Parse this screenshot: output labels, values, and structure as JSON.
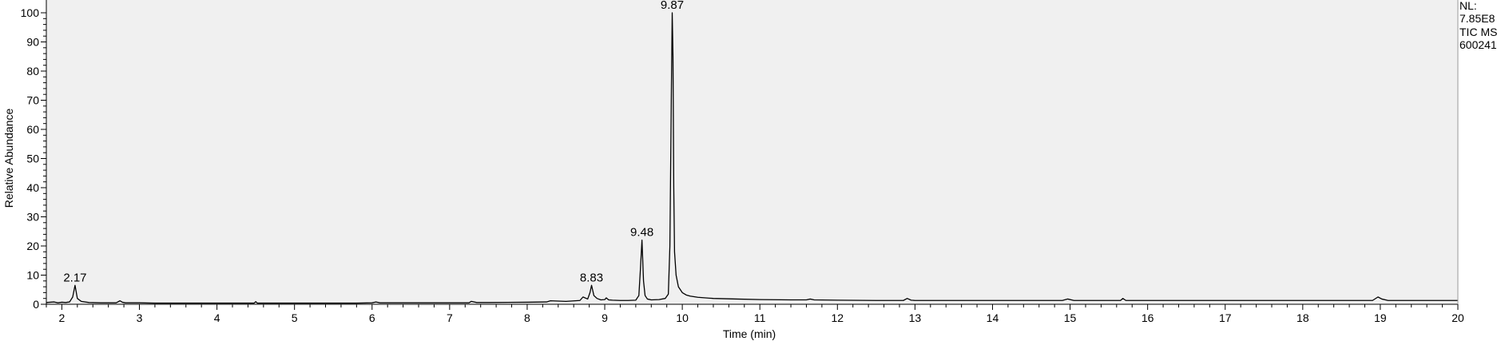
{
  "chart_data": {
    "type": "line",
    "title": "",
    "xlabel": "Time (min)",
    "ylabel": "Relative Abundance",
    "xlim": [
      1.8,
      20
    ],
    "ylim": [
      0,
      100
    ],
    "x_ticks": [
      2,
      3,
      4,
      5,
      6,
      7,
      8,
      9,
      10,
      11,
      12,
      13,
      14,
      15,
      16,
      17,
      18,
      19,
      20
    ],
    "y_ticks": [
      0,
      10,
      20,
      30,
      40,
      50,
      60,
      70,
      80,
      90,
      100
    ],
    "info": [
      "NL:",
      "7.85E8",
      "TIC  MS",
      "600241"
    ],
    "annotations": [
      {
        "x": 2.17,
        "y": 6.5,
        "label": "2.17"
      },
      {
        "x": 8.83,
        "y": 6.5,
        "label": "8.83"
      },
      {
        "x": 9.48,
        "y": 22,
        "label": "9.48"
      },
      {
        "x": 9.87,
        "y": 100,
        "label": "9.87"
      }
    ],
    "series": [
      {
        "name": "TIC MS",
        "x": [
          1.8,
          1.9,
          1.95,
          2.0,
          2.05,
          2.1,
          2.14,
          2.17,
          2.2,
          2.25,
          2.35,
          2.5,
          2.7,
          2.75,
          2.78,
          2.82,
          3.0,
          3.2,
          3.5,
          3.8,
          4.0,
          4.3,
          4.48,
          4.5,
          4.52,
          4.8,
          5.0,
          5.3,
          5.6,
          5.8,
          6.0,
          6.05,
          6.1,
          6.5,
          7.0,
          7.25,
          7.28,
          7.35,
          7.5,
          8.0,
          8.25,
          8.3,
          8.5,
          8.68,
          8.72,
          8.78,
          8.81,
          8.83,
          8.86,
          8.9,
          8.95,
          9.0,
          9.02,
          9.05,
          9.1,
          9.2,
          9.3,
          9.4,
          9.44,
          9.46,
          9.48,
          9.5,
          9.52,
          9.55,
          9.6,
          9.7,
          9.78,
          9.82,
          9.84,
          9.86,
          9.87,
          9.88,
          9.89,
          9.9,
          9.92,
          9.95,
          10.0,
          10.05,
          10.1,
          10.2,
          10.4,
          10.7,
          11.0,
          11.4,
          11.6,
          11.65,
          11.7,
          12.0,
          12.5,
          12.85,
          12.9,
          12.95,
          13.0,
          13.5,
          14.0,
          14.5,
          14.9,
          14.97,
          15.05,
          15.5,
          15.65,
          15.68,
          15.72,
          16.0,
          17.0,
          18.0,
          18.9,
          18.97,
          19.02,
          19.1,
          19.3,
          20.0
        ],
        "y": [
          0.6,
          0.8,
          0.5,
          0.7,
          0.6,
          0.8,
          2.5,
          6.5,
          2.0,
          1.0,
          0.6,
          0.5,
          0.5,
          1.2,
          0.7,
          0.5,
          0.5,
          0.4,
          0.4,
          0.4,
          0.4,
          0.4,
          0.4,
          0.9,
          0.4,
          0.4,
          0.4,
          0.4,
          0.4,
          0.4,
          0.5,
          0.8,
          0.5,
          0.5,
          0.5,
          0.5,
          1.0,
          0.6,
          0.6,
          0.7,
          0.8,
          1.2,
          1.0,
          1.3,
          2.5,
          1.8,
          4.0,
          6.5,
          3.0,
          2.0,
          1.5,
          1.6,
          2.2,
          1.5,
          1.4,
          1.3,
          1.3,
          1.4,
          3.0,
          12.0,
          22.0,
          8.0,
          3.0,
          1.8,
          1.5,
          1.6,
          2.0,
          3.5,
          20.0,
          75.0,
          100.0,
          85.0,
          40.0,
          18.0,
          10.0,
          6.0,
          4.0,
          3.2,
          2.8,
          2.4,
          2.0,
          1.8,
          1.6,
          1.5,
          1.5,
          1.8,
          1.5,
          1.4,
          1.3,
          1.3,
          2.0,
          1.4,
          1.3,
          1.3,
          1.3,
          1.3,
          1.3,
          1.8,
          1.3,
          1.3,
          1.3,
          2.0,
          1.3,
          1.3,
          1.3,
          1.3,
          1.3,
          2.5,
          1.8,
          1.3,
          1.3,
          1.3
        ]
      }
    ]
  }
}
